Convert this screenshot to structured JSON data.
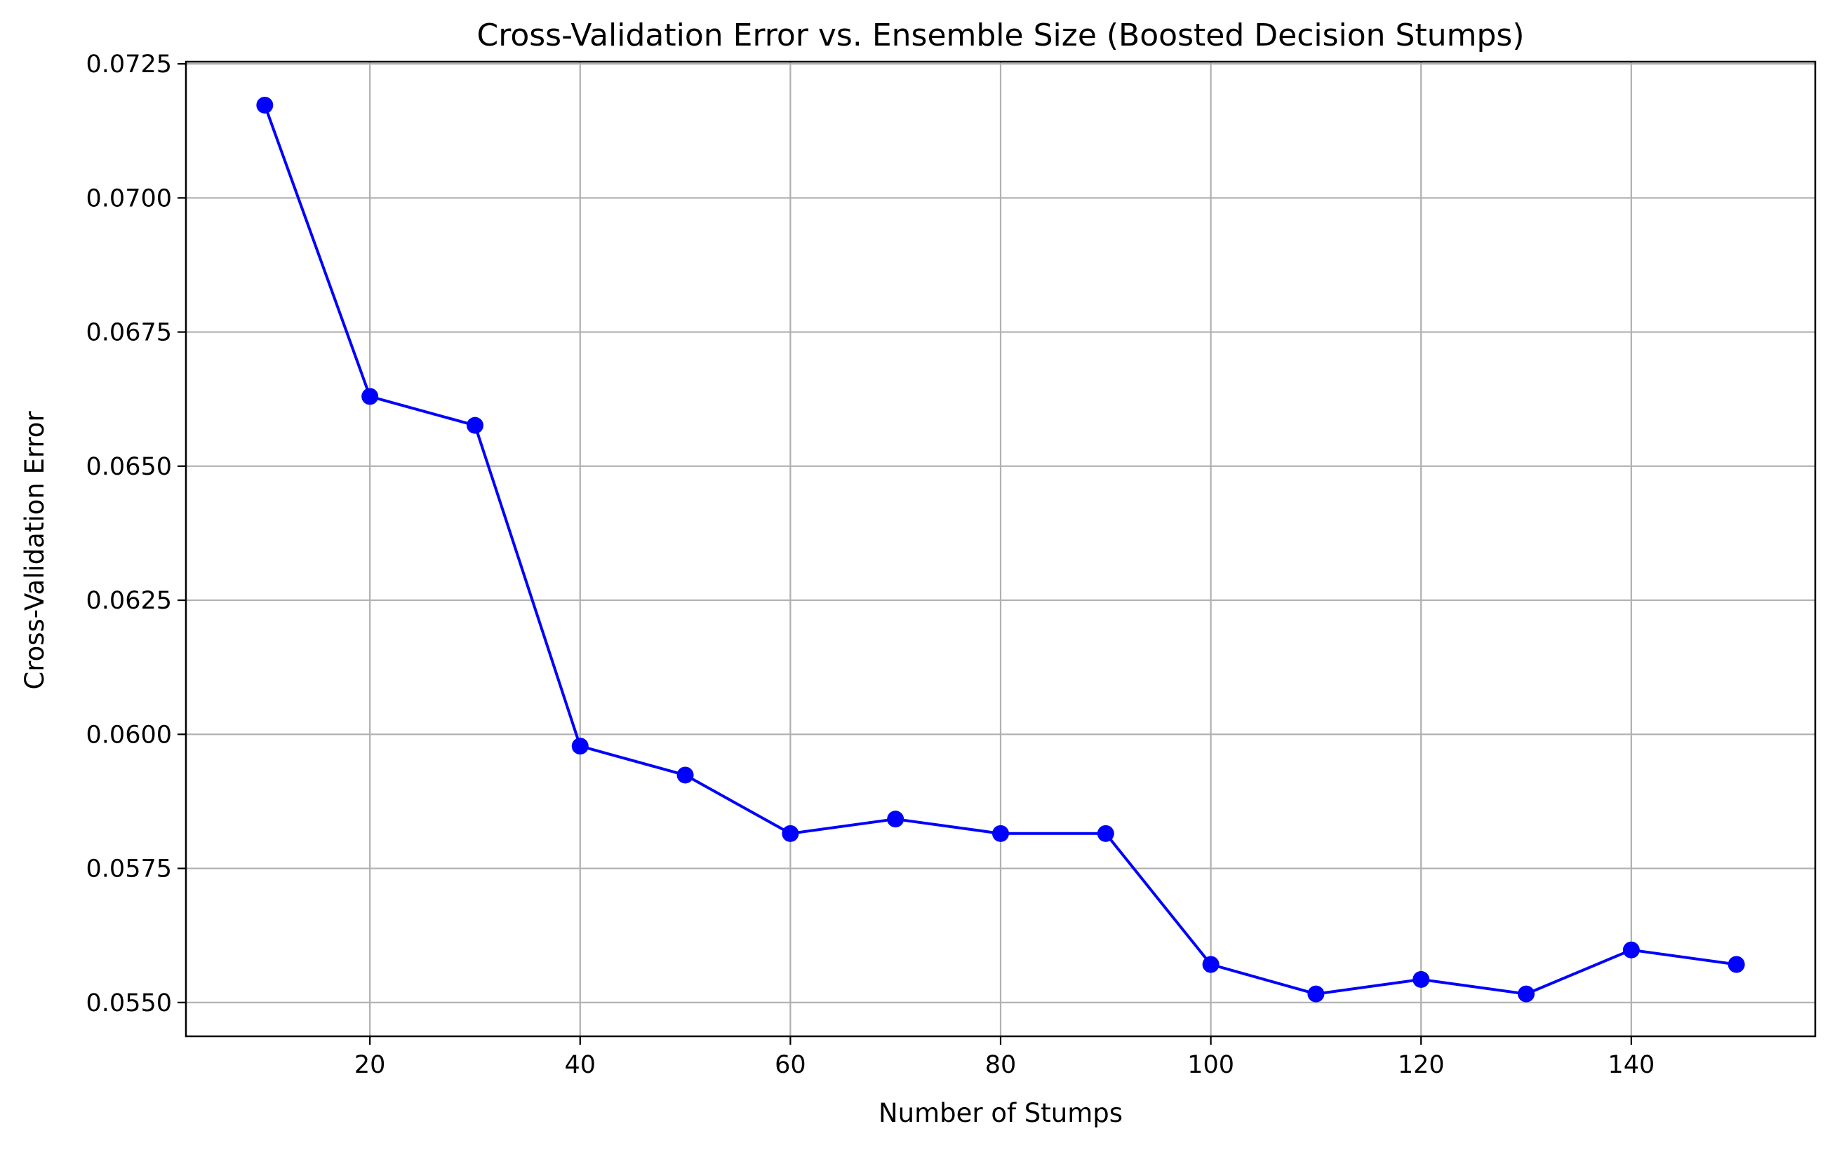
{
  "chart_data": {
    "type": "line",
    "title": "Cross-Validation Error vs. Ensemble Size (Boosted Decision Stumps)",
    "xlabel": "Number of Stumps",
    "ylabel": "Cross-Validation Error",
    "x": [
      10,
      20,
      30,
      40,
      50,
      60,
      70,
      80,
      90,
      100,
      110,
      120,
      130,
      140,
      150
    ],
    "series": [
      {
        "values": [
          0.07173,
          0.0663,
          0.06576,
          0.05978,
          0.05924,
          0.05815,
          0.05842,
          0.05815,
          0.05815,
          0.05571,
          0.05516,
          0.05543,
          0.05516,
          0.05598,
          0.05571
        ],
        "color": "#0000ff",
        "marker": "circle"
      }
    ],
    "xlim": [
      2.5,
      157.5
    ],
    "ylim": [
      0.05437,
      0.07254
    ],
    "xticks": [
      20,
      40,
      60,
      80,
      100,
      120,
      140
    ],
    "xtick_labels": [
      "20",
      "40",
      "60",
      "80",
      "100",
      "120",
      "140"
    ],
    "yticks": [
      0.055,
      0.0575,
      0.06,
      0.0625,
      0.065,
      0.0675,
      0.07,
      0.0725
    ],
    "ytick_labels": [
      "0.0550",
      "0.0575",
      "0.0600",
      "0.0625",
      "0.0650",
      "0.0675",
      "0.0700",
      "0.0725"
    ],
    "grid": true,
    "grid_color": "#b0b0b0"
  }
}
